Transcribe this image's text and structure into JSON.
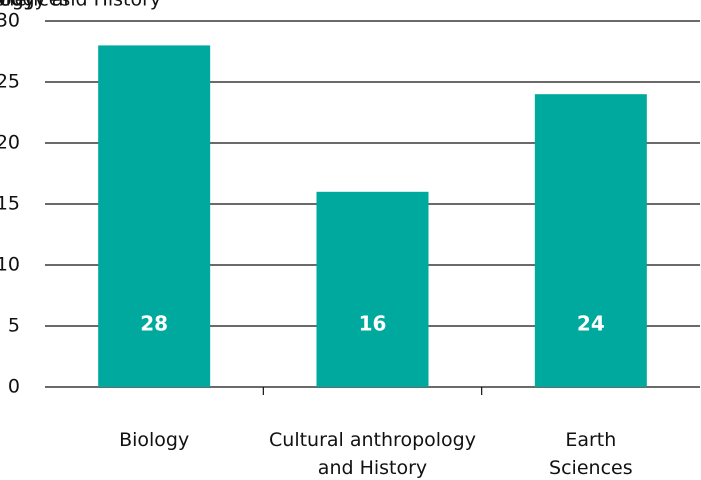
{
  "chart_data": {
    "type": "bar",
    "categories": [
      "Biology",
      "Cultural anthropology\nand History",
      "Earth\nSciences"
    ],
    "values": [
      28,
      16,
      24
    ],
    "color": "#00a99d",
    "ylim": [
      0,
      30
    ],
    "yticks": [
      0,
      5,
      10,
      15,
      20,
      25,
      30
    ],
    "grid": true,
    "value_labels_inside": true
  }
}
